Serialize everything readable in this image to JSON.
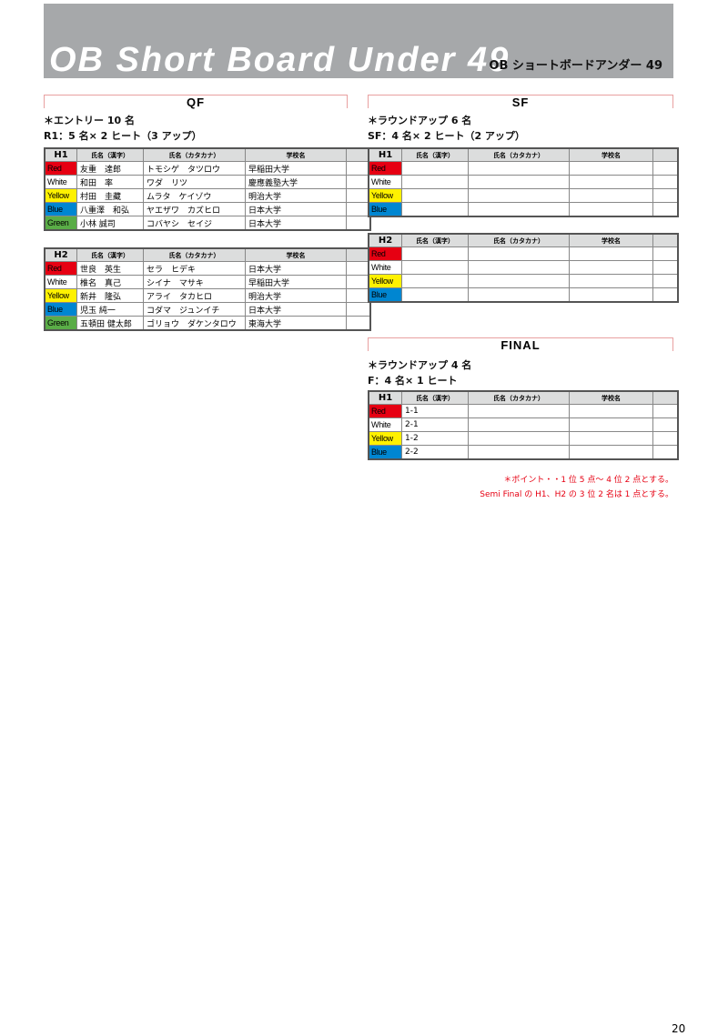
{
  "header": {
    "title": "OB Short Board Under 49",
    "subtitle": "OB ショートボードアンダー 49"
  },
  "columns": [
    "氏名（漢字）",
    "氏名（カタカナ）",
    "学校名"
  ],
  "colors": {
    "Red": "#e60012",
    "White": "#ffffff",
    "Yellow": "#fff100",
    "Blue": "#0086d1",
    "Green": "#5aad47"
  },
  "qf": {
    "title": "QF",
    "note1": "＊エントリー 10 名",
    "note2": "R1：5 名× 2 ヒート（3 アップ）",
    "heats": [
      {
        "label": "H1",
        "rows": [
          [
            "Red",
            "友重　達郎",
            "トモシゲ　タツロウ",
            "早稲田大学"
          ],
          [
            "White",
            "和田　率",
            "ワダ　リツ",
            "慶應義塾大学"
          ],
          [
            "Yellow",
            "村田　圭藏",
            "ムラタ　ケイゾウ",
            "明治大学"
          ],
          [
            "Blue",
            "八重澤　和弘",
            "ヤエザワ　カズヒロ",
            "日本大学"
          ],
          [
            "Green",
            "小林 誠司",
            "コバヤシ　セイジ",
            "日本大学"
          ]
        ]
      },
      {
        "label": "H2",
        "rows": [
          [
            "Red",
            "世良　英生",
            "セラ　ヒデキ",
            "日本大学"
          ],
          [
            "White",
            "椎名　真己",
            "シイナ　マサキ",
            "早稲田大学"
          ],
          [
            "Yellow",
            "新井　隆弘",
            "アライ　タカヒロ",
            "明治大学"
          ],
          [
            "Blue",
            "児玉 純一",
            "コダマ　ジュンイチ",
            "日本大学"
          ],
          [
            "Green",
            "五頓田 健太郎",
            "ゴリョウ　ダケンタロウ",
            "東海大学"
          ]
        ]
      }
    ]
  },
  "sf": {
    "title": "SF",
    "note1": "＊ラウンドアップ 6 名",
    "note2": "SF：4 名× 2 ヒート（2 アップ）",
    "heats": [
      {
        "label": "H1",
        "rows": [
          [
            "Red",
            "",
            "",
            ""
          ],
          [
            "White",
            "",
            "",
            ""
          ],
          [
            "Yellow",
            "",
            "",
            ""
          ],
          [
            "Blue",
            "",
            "",
            ""
          ]
        ]
      },
      {
        "label": "H2",
        "rows": [
          [
            "Red",
            "",
            "",
            ""
          ],
          [
            "White",
            "",
            "",
            ""
          ],
          [
            "Yellow",
            "",
            "",
            ""
          ],
          [
            "Blue",
            "",
            "",
            ""
          ]
        ]
      }
    ]
  },
  "final": {
    "title": "FINAL",
    "note1": "＊ラウンドアップ 4 名",
    "note2": "F：4 名× 1 ヒート",
    "heats": [
      {
        "label": "H1",
        "rows": [
          [
            "Red",
            "1-1",
            "",
            ""
          ],
          [
            "White",
            "2-1",
            "",
            ""
          ],
          [
            "Yellow",
            "1-2",
            "",
            ""
          ],
          [
            "Blue",
            "2-2",
            "",
            ""
          ]
        ]
      }
    ],
    "point_note1": "＊ポイント・・1 位 5 点～ 4 位 2 点とする。",
    "point_note2": "Semi Final の H1、H2 の 3 位 2 名は 1 点とする。"
  },
  "page_number": "20"
}
